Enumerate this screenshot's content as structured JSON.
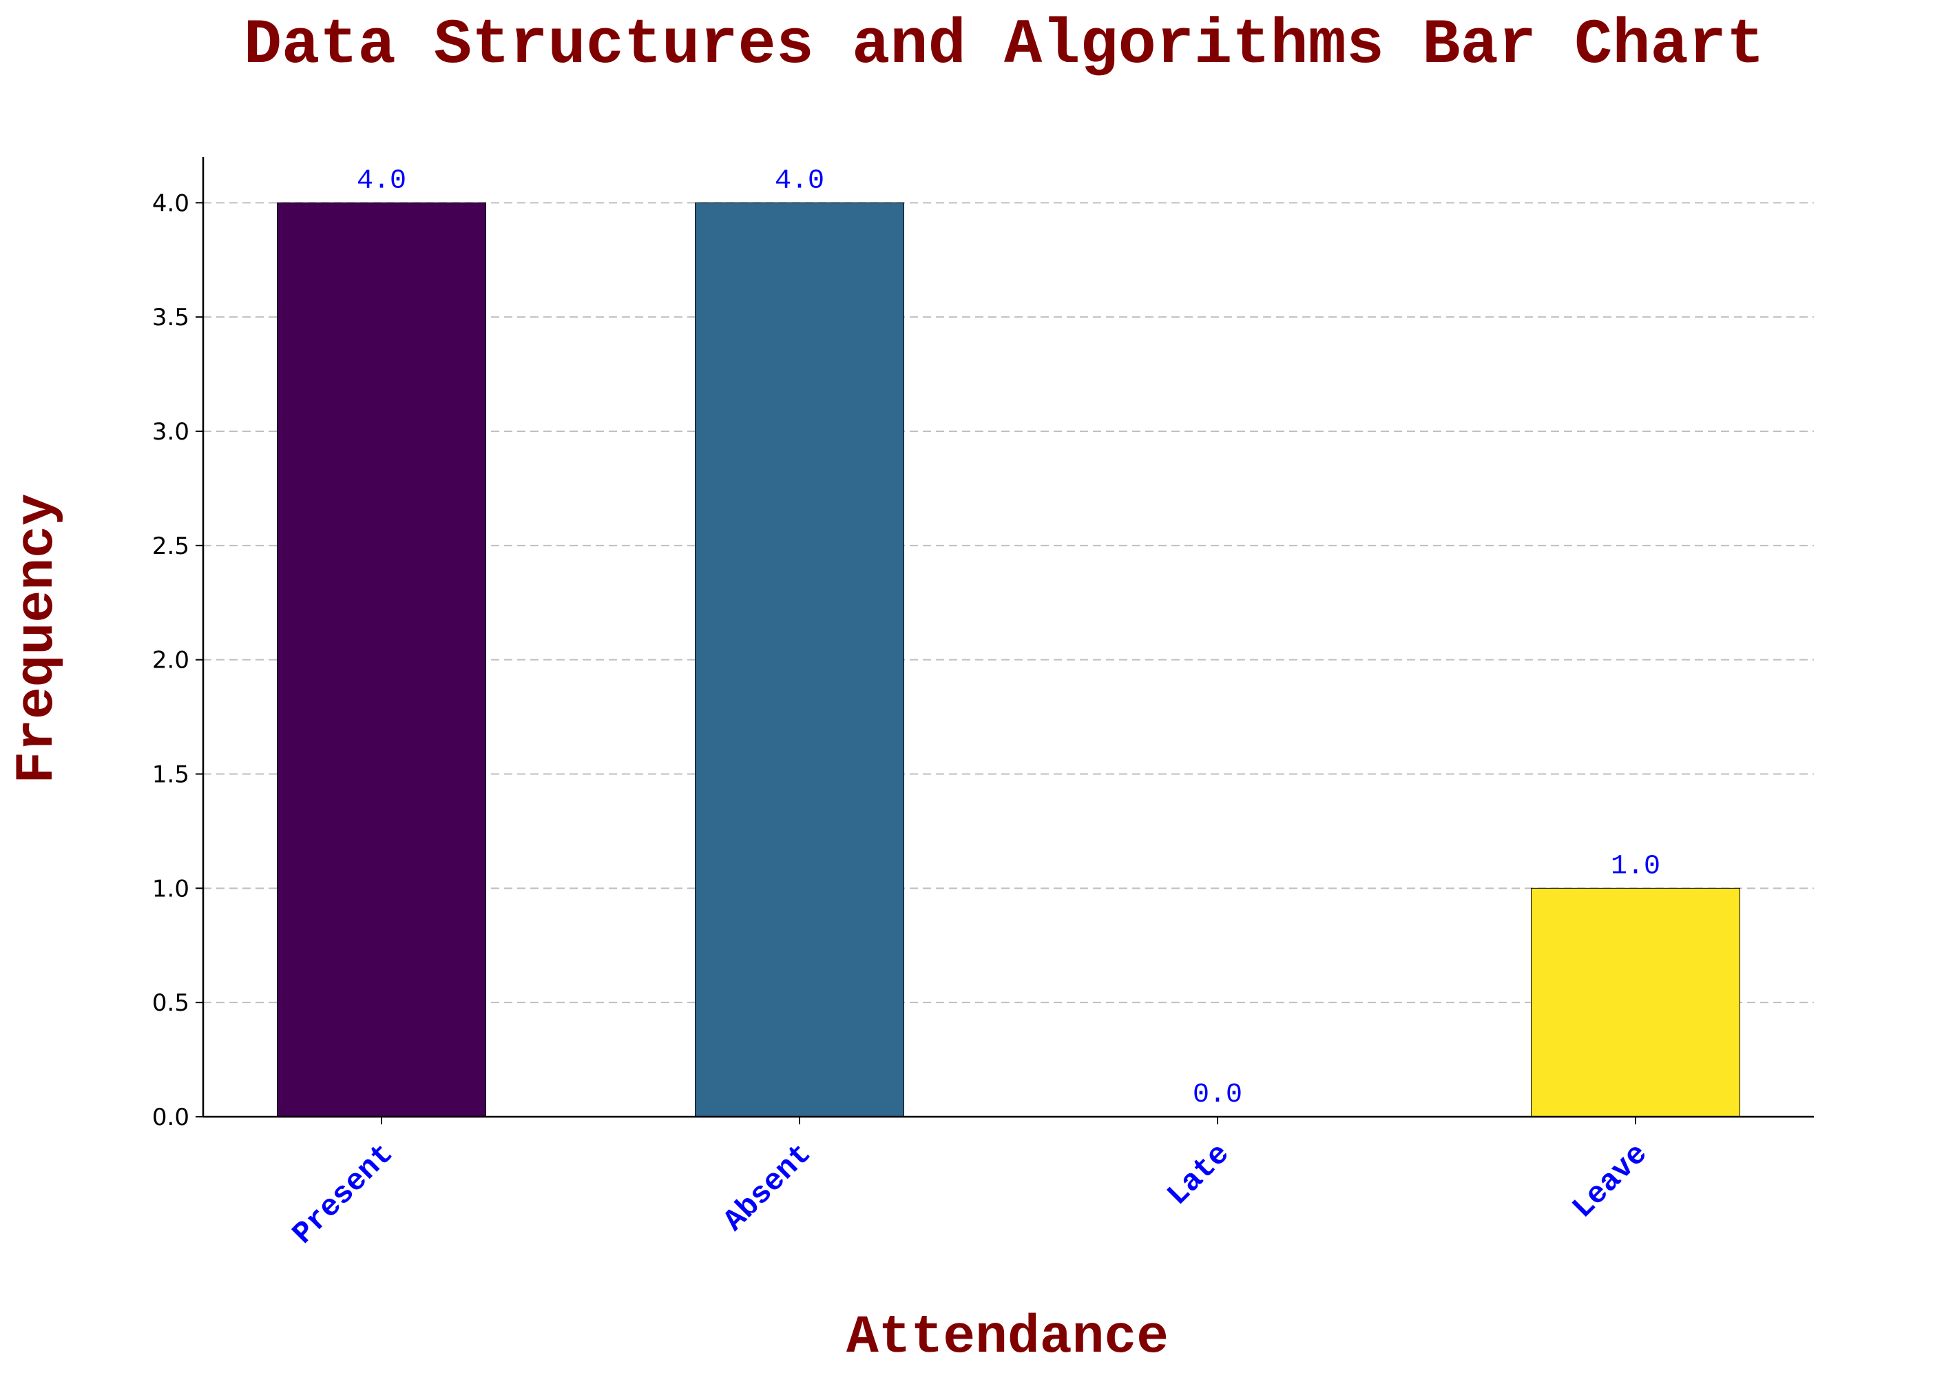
{
  "chart_data": {
    "type": "bar",
    "title": "Data Structures and Algorithms Bar Chart",
    "xlabel": "Attendance",
    "ylabel": "Frequency",
    "categories": [
      "Present",
      "Absent",
      "Late",
      "Leave"
    ],
    "values": [
      4.0,
      4.0,
      0.0,
      1.0
    ],
    "value_labels": [
      "4.0",
      "4.0",
      "0.0",
      "1.0"
    ],
    "bar_colors": [
      "#440154",
      "#31688e",
      "#35b779",
      "#fde725"
    ],
    "ylim": [
      0,
      4.2
    ],
    "yticks": [
      0.0,
      0.5,
      1.0,
      1.5,
      2.0,
      2.5,
      3.0,
      3.5,
      4.0
    ],
    "ytick_labels": [
      "0.0",
      "0.5",
      "1.0",
      "1.5",
      "2.0",
      "2.5",
      "3.0",
      "3.5",
      "4.0"
    ],
    "grid": "y",
    "legend": "none"
  },
  "colors": {
    "title": "#800000",
    "axis_label": "#800000",
    "category_label": "#0000ff",
    "value_label": "#0000ff",
    "grid": "#b0b0b0",
    "axis": "#000000",
    "bar_edge": "#000000"
  }
}
